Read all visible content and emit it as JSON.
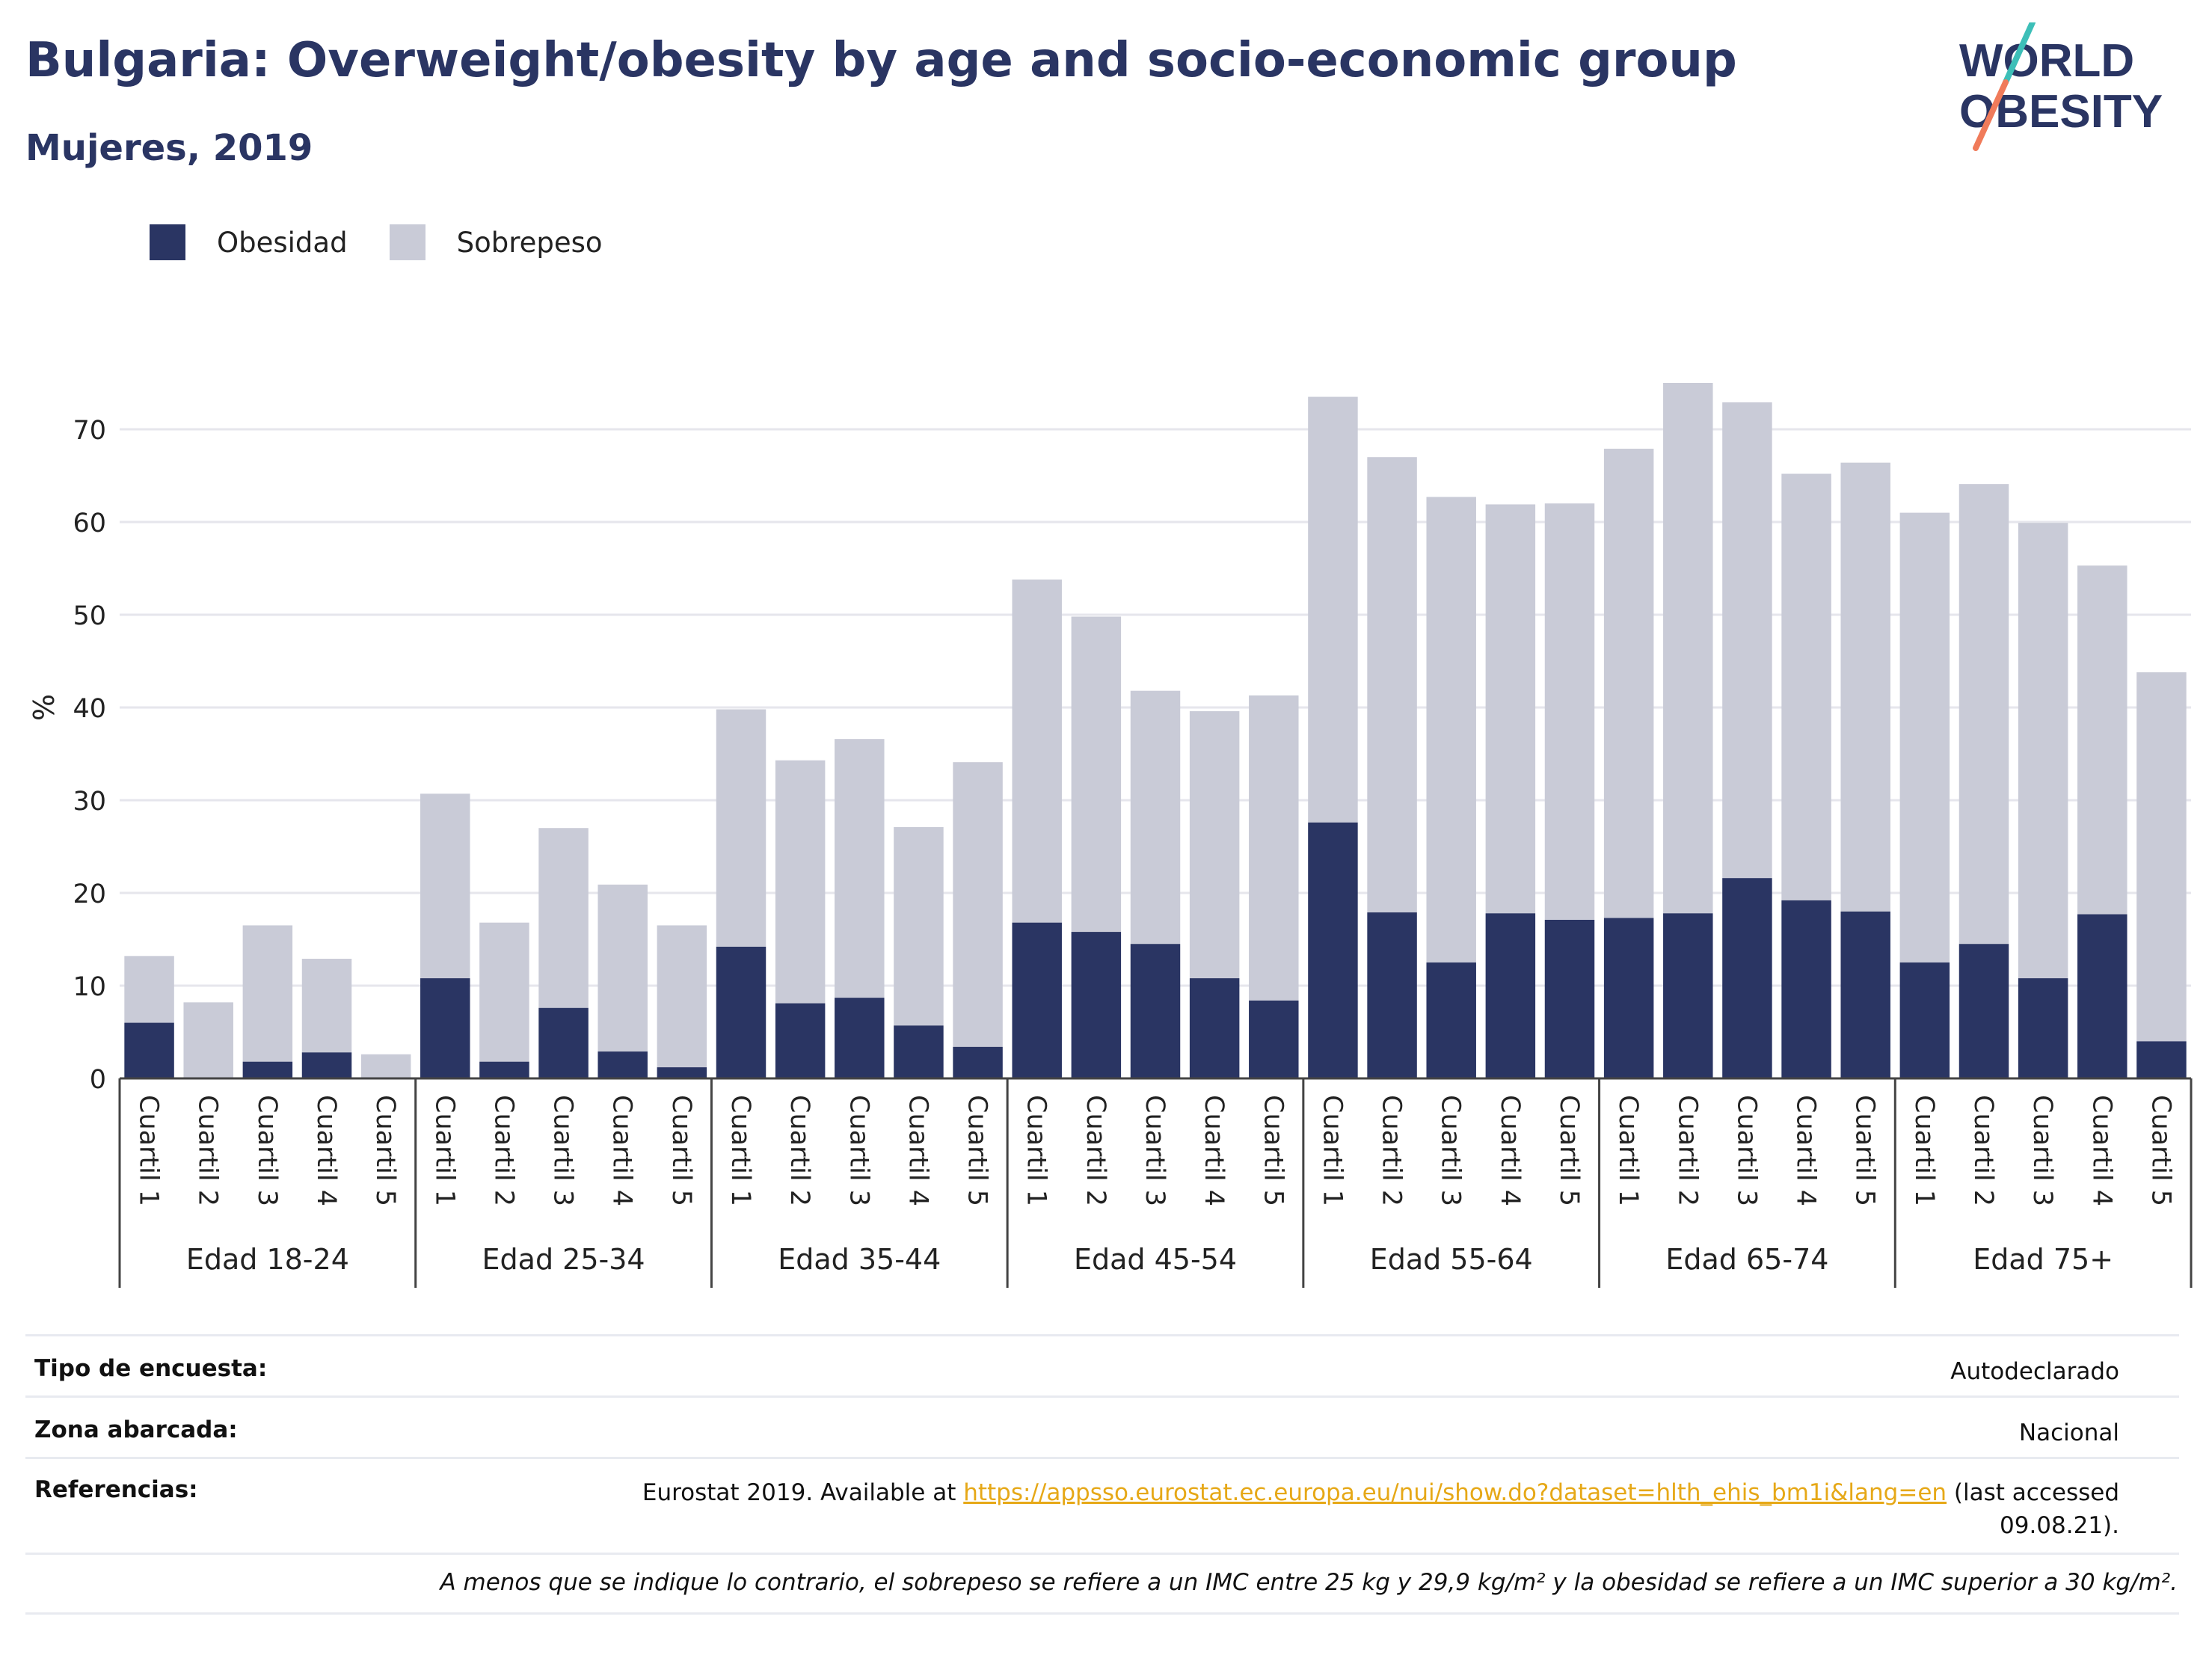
{
  "header": {
    "title": "Bulgaria: Overweight/obesity by age and socio-economic group",
    "subtitle": "Mujeres, 2019",
    "logo_line1": "WORLD",
    "logo_line2": "OBESITY"
  },
  "legend": [
    {
      "label": "Obesidad",
      "color": "#2a3563"
    },
    {
      "label": "Sobrepeso",
      "color": "#c9cbd7"
    }
  ],
  "chart_data": {
    "type": "bar",
    "stacked": true,
    "ylabel": "%",
    "xlabel": "",
    "ylim": [
      0,
      75
    ],
    "yticks": [
      0,
      10,
      20,
      30,
      40,
      50,
      60,
      70
    ],
    "grid": true,
    "legend_position": "top-left",
    "groups": [
      "Edad 18-24",
      "Edad 25-34",
      "Edad 35-44",
      "Edad 45-54",
      "Edad 55-64",
      "Edad 65-74",
      "Edad 75+"
    ],
    "categories": [
      "Cuartil 1",
      "Cuartil 2",
      "Cuartil 3",
      "Cuartil 4",
      "Cuartil 5"
    ],
    "series": [
      {
        "name": "Obesidad",
        "color": "#2a3563",
        "values": [
          [
            6.0,
            0.0,
            1.8,
            2.8,
            0.0
          ],
          [
            10.8,
            1.8,
            7.6,
            2.9,
            1.2
          ],
          [
            14.2,
            8.1,
            8.7,
            5.7,
            3.4
          ],
          [
            16.8,
            15.8,
            14.5,
            10.8,
            8.4
          ],
          [
            27.6,
            17.9,
            12.5,
            17.8,
            17.1
          ],
          [
            17.3,
            17.8,
            21.6,
            19.2,
            18.0
          ],
          [
            12.5,
            14.5,
            10.8,
            17.7,
            4.0
          ]
        ]
      },
      {
        "name": "Sobrepeso",
        "color": "#c9cbd7",
        "values": [
          [
            7.2,
            8.2,
            14.7,
            10.1,
            2.6
          ],
          [
            19.9,
            15.0,
            19.4,
            18.0,
            15.3
          ],
          [
            25.6,
            26.2,
            27.9,
            21.4,
            30.7
          ],
          [
            37.0,
            34.0,
            27.3,
            28.8,
            32.9
          ],
          [
            45.9,
            49.1,
            50.2,
            44.1,
            44.9
          ],
          [
            50.6,
            57.2,
            51.3,
            46.0,
            48.4
          ],
          [
            48.5,
            49.6,
            49.1,
            37.6,
            39.8
          ]
        ]
      }
    ]
  },
  "meta": {
    "survey_key": "Tipo de encuesta:",
    "survey_val": "Autodeclarado",
    "area_key": "Zona abarcada:",
    "area_val": "Nacional",
    "ref_key": "Referencias:",
    "ref_prefix": "Eurostat 2019. Available at",
    "ref_link": "https://appsso.eurostat.ec.europa.eu/nui/show.do?dataset=hlth_ehis_bm1i&lang=en",
    "ref_suffix": "(last accessed",
    "ref_date": "09.08.21).",
    "note": "A menos que se indique lo contrario, el sobrepeso se refiere a un IMC entre 25 kg y 29,9 kg/m² y la obesidad se refiere a un IMC superior a 30 kg/m²."
  }
}
